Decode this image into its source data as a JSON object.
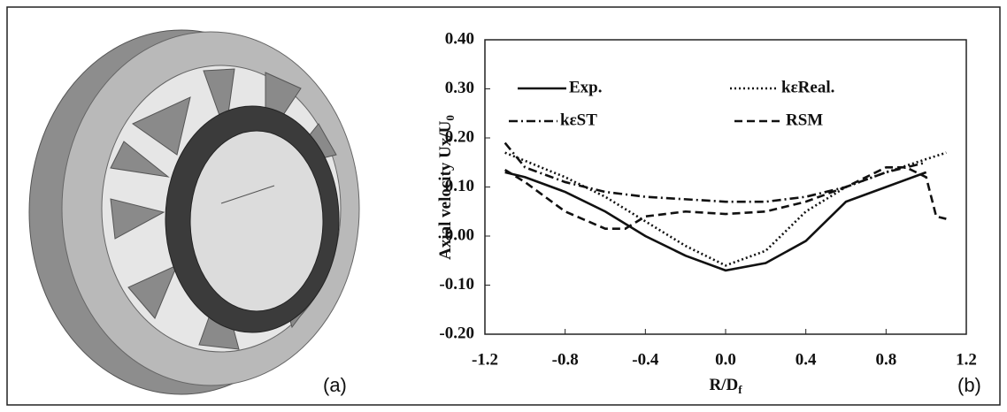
{
  "panels": {
    "a": "(a)",
    "b": "(b)"
  },
  "chart_data": {
    "type": "line",
    "y_label": "Axial velocity Ux/U",
    "y_label_sub": "0",
    "x_label": "R/D",
    "x_label_sub": "f",
    "xlim": [
      -1.2,
      1.2
    ],
    "ylim": [
      -0.2,
      0.4
    ],
    "xticks": [
      -1.2,
      -0.8,
      -0.4,
      {
        "value": 0,
        "label": "0.0"
      },
      0.4,
      0.8,
      1.2
    ],
    "yticks": [
      {
        "value": 0.4,
        "label": "0.40"
      },
      {
        "value": 0.3,
        "label": "0.30"
      },
      {
        "value": 0.2,
        "label": "0.20"
      },
      {
        "value": 0.1,
        "label": "0.10"
      },
      {
        "value": 0,
        "label": "0.00"
      },
      {
        "value": -0.1,
        "label": "-0.10"
      },
      {
        "value": -0.2,
        "label": "-0.20"
      }
    ],
    "legend": "top",
    "grid": false,
    "series": [
      {
        "name": "Exp.",
        "color": "#111111",
        "style": "solid",
        "x": [
          -1.1,
          -1.0,
          -0.8,
          -0.6,
          -0.4,
          -0.2,
          0.0,
          0.2,
          0.4,
          0.6,
          0.8,
          1.0
        ],
        "values": [
          0.13,
          0.12,
          0.09,
          0.05,
          0.0,
          -0.04,
          -0.07,
          -0.055,
          -0.01,
          0.07,
          0.1,
          0.13
        ]
      },
      {
        "name": "kεReal.",
        "color": "#111111",
        "style": "dotted",
        "x": [
          -1.1,
          -0.8,
          -0.6,
          -0.4,
          -0.2,
          0.0,
          0.2,
          0.4,
          0.6,
          0.8,
          1.1
        ],
        "values": [
          0.17,
          0.12,
          0.08,
          0.03,
          -0.02,
          -0.06,
          -0.03,
          0.05,
          0.1,
          0.13,
          0.17
        ]
      },
      {
        "name": "kεST",
        "color": "#111111",
        "style": "dashdot",
        "x": [
          -1.1,
          -1.0,
          -0.8,
          -0.6,
          -0.4,
          -0.2,
          0.0,
          0.2,
          0.4,
          0.6,
          0.8,
          1.0
        ],
        "values": [
          0.19,
          0.14,
          0.11,
          0.09,
          0.08,
          0.075,
          0.07,
          0.07,
          0.08,
          0.1,
          0.13,
          0.15
        ]
      },
      {
        "name": "RSM",
        "color": "#111111",
        "style": "dashed",
        "x": [
          -1.1,
          -1.0,
          -0.8,
          -0.6,
          -0.5,
          -0.4,
          -0.2,
          0.0,
          0.2,
          0.4,
          0.6,
          0.8,
          0.9,
          1.0,
          1.05,
          1.1
        ],
        "values": [
          0.135,
          0.11,
          0.05,
          0.015,
          0.015,
          0.04,
          0.05,
          0.045,
          0.05,
          0.07,
          0.1,
          0.14,
          0.14,
          0.12,
          0.04,
          0.035
        ]
      }
    ]
  }
}
